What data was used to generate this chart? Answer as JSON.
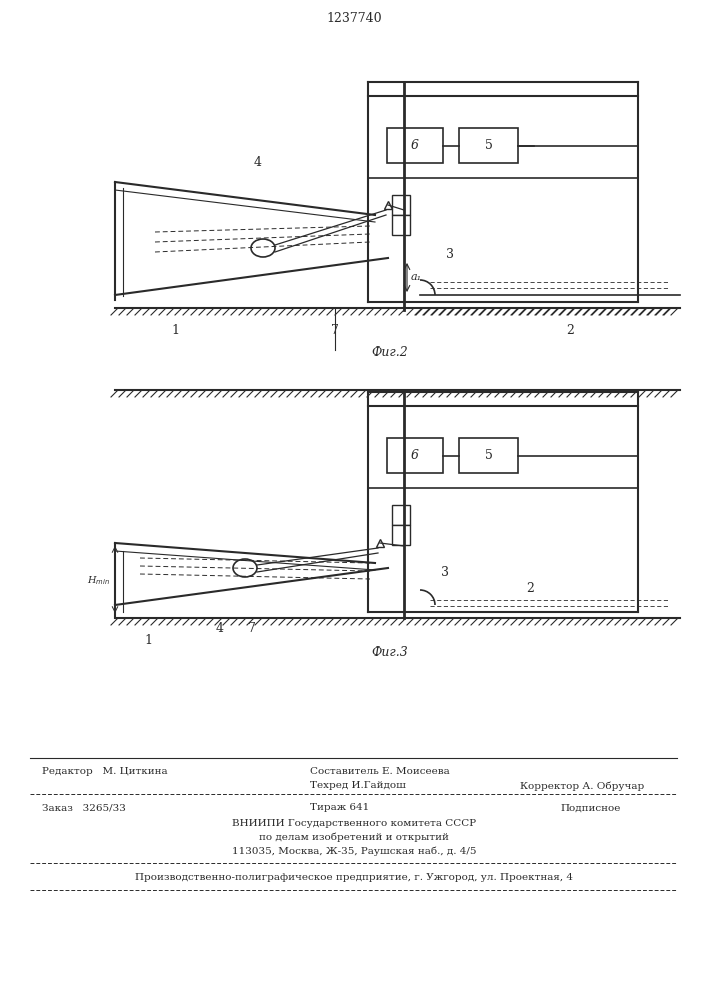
{
  "patent_number": "1237740",
  "bg_color": "#ffffff",
  "line_color": "#2a2a2a",
  "fig_width": 7.07,
  "fig_height": 10.0,
  "dpi": 100,
  "footer": {
    "editor": "Редактор   М. Циткина",
    "compiler": "Составитель Е. Моисеева",
    "techred": "Техред И.Гайдош",
    "corrector": "Корректор А. Обручар",
    "order": "Заказ   3265/33",
    "tirazh": "Тираж 641",
    "podpisnoe": "Подписное",
    "vniipи": "ВНИИПИ Государственного комитета СССР",
    "podel": "по делам изобретений и открытий",
    "address": "113035, Москва, Ж-35, Раушская наб., д. 4/5",
    "proizv": "Производственно-полиграфическое предприятие, г. Ужгород, ул. Проектная, 4"
  }
}
